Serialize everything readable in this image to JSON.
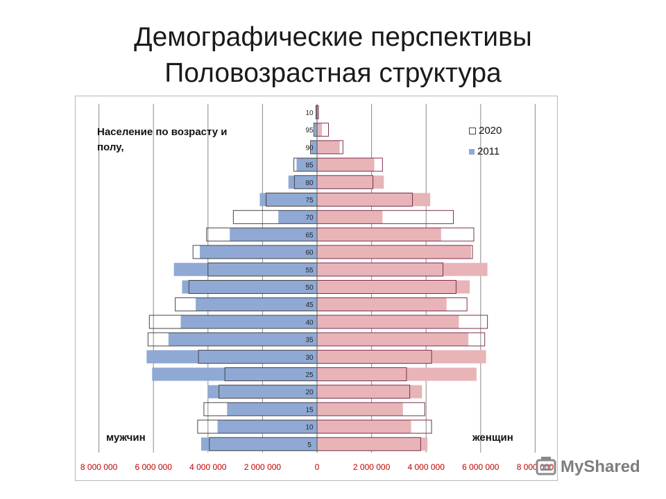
{
  "title_line1": "Демографические перспективы",
  "title_line2": "Половозрастная структура",
  "subtitle": "Население по возрасту и полу,",
  "side_labels": {
    "men": "мужчин",
    "women": "женщин"
  },
  "watermark": "MyShared",
  "colors": {
    "male_2011": "#8fa9d4",
    "female_2011": "#e8b4b8",
    "outline_2020_male": "#444444",
    "outline_2020_female": "#7a2e4a",
    "x_tick_text": "#c00000",
    "grid": "#888888"
  },
  "chart_data": {
    "type": "bar",
    "orientation": "horizontal",
    "subtype": "population-pyramid",
    "title": "Население по возрасту и полу,",
    "categories": [
      "10",
      "95",
      "90",
      "85",
      "80",
      "75",
      "70",
      "65",
      "60",
      "55",
      "50",
      "45",
      "40",
      "35",
      "30",
      "25",
      "20",
      "15",
      "10",
      "5"
    ],
    "x_tick_values": [
      -8000000,
      -6000000,
      -4000000,
      -2000000,
      0,
      2000000,
      4000000,
      6000000,
      8000000
    ],
    "x_tick_labels": [
      "8 000 000",
      "6 000 000",
      "4 000 000",
      "2 000 000",
      "0",
      "2 000 000",
      "4 000 000",
      "6 000 000",
      "8 000 000"
    ],
    "xlim": [
      -8000000,
      8000000
    ],
    "legend": {
      "placement": "top-right",
      "entries": [
        "2020",
        "2011"
      ]
    },
    "grid": true,
    "series": [
      {
        "name": "2011",
        "side": "male",
        "style": "filled",
        "values": [
          30000,
          100000,
          220000,
          750000,
          1050000,
          2100000,
          1420000,
          3200000,
          4300000,
          5250000,
          4950000,
          4450000,
          5000000,
          5450000,
          6250000,
          6050000,
          4000000,
          3300000,
          3650000,
          4250000
        ]
      },
      {
        "name": "2011",
        "side": "female",
        "style": "filled",
        "values": [
          60000,
          180000,
          830000,
          2100000,
          2450000,
          4150000,
          2400000,
          4550000,
          5650000,
          6250000,
          5600000,
          4750000,
          5200000,
          5550000,
          6200000,
          5850000,
          3850000,
          3150000,
          3450000,
          4050000
        ]
      },
      {
        "name": "2020",
        "side": "male",
        "style": "outline",
        "values": [
          40000,
          120000,
          240000,
          850000,
          830000,
          1870000,
          3070000,
          4050000,
          4550000,
          4000000,
          4700000,
          5200000,
          6150000,
          6200000,
          4350000,
          3380000,
          3600000,
          4150000,
          4380000,
          3950000
        ]
      },
      {
        "name": "2020",
        "side": "female",
        "style": "outline",
        "values": [
          50000,
          420000,
          950000,
          2400000,
          2050000,
          3500000,
          5000000,
          5750000,
          5700000,
          4620000,
          5100000,
          5500000,
          6250000,
          6150000,
          4200000,
          3280000,
          3400000,
          3950000,
          4200000,
          3800000
        ]
      }
    ]
  }
}
